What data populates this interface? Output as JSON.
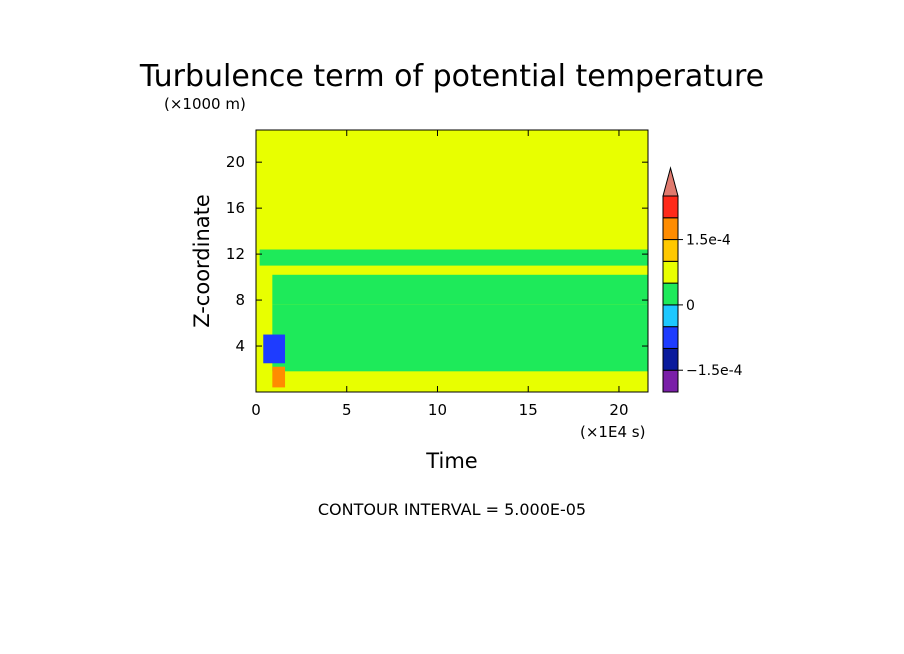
{
  "chart_data": {
    "type": "heatmap",
    "title": "Turbulence term of potential temperature",
    "xlabel": "Time",
    "ylabel": "Z-coordinate",
    "x_scale_note": "(×1E4 s)",
    "y_scale_note": "(×1000 m)",
    "xlim": [
      0,
      21.6
    ],
    "ylim": [
      0,
      22.8
    ],
    "x_ticks": [
      "0",
      "5",
      "10",
      "15",
      "20"
    ],
    "y_ticks": [
      "4",
      "8",
      "12",
      "16",
      "20"
    ],
    "x_tick_values": [
      0,
      5,
      10,
      15,
      20
    ],
    "y_tick_values": [
      4,
      8,
      12,
      16,
      20
    ],
    "contour_interval_label": "CONTOUR INTERVAL = 5.000E-05",
    "contour_interval": 5e-05,
    "colorbar": {
      "levels": [
        -0.0002,
        -0.00015,
        -0.0001,
        -5e-05,
        0,
        5e-05,
        0.0001,
        0.00015,
        0.0002
      ],
      "colors": [
        "#7a1fa8",
        "#0a1b9c",
        "#1e3cff",
        "#1ec8ff",
        "#1eea5a",
        "#e8ff00",
        "#ffc800",
        "#ff8c00",
        "#ff2a1a",
        "#e07a6e"
      ],
      "tick_labels": [
        "1.5e-4",
        "0",
        "−1.5e-4"
      ],
      "tick_values": [
        0.00015,
        0,
        -0.00015
      ],
      "extend": "max"
    },
    "background_value_band": "0 to 5e-05",
    "regions": [
      {
        "x": [
          0.2,
          21.6
        ],
        "z": [
          11.0,
          12.4
        ],
        "value": -2.5e-05
      },
      {
        "x": [
          0.9,
          21.6
        ],
        "z": [
          7.6,
          10.2
        ],
        "value": -2.5e-05
      },
      {
        "x": [
          0.9,
          21.6
        ],
        "z": [
          1.8,
          7.6
        ],
        "value": -2.5e-05
      },
      {
        "x": [
          0.4,
          1.6
        ],
        "z": [
          2.5,
          5.0
        ],
        "value": -0.000125
      },
      {
        "x": [
          0.9,
          1.6
        ],
        "z": [
          0.4,
          2.2
        ],
        "value": 0.000125
      }
    ]
  }
}
